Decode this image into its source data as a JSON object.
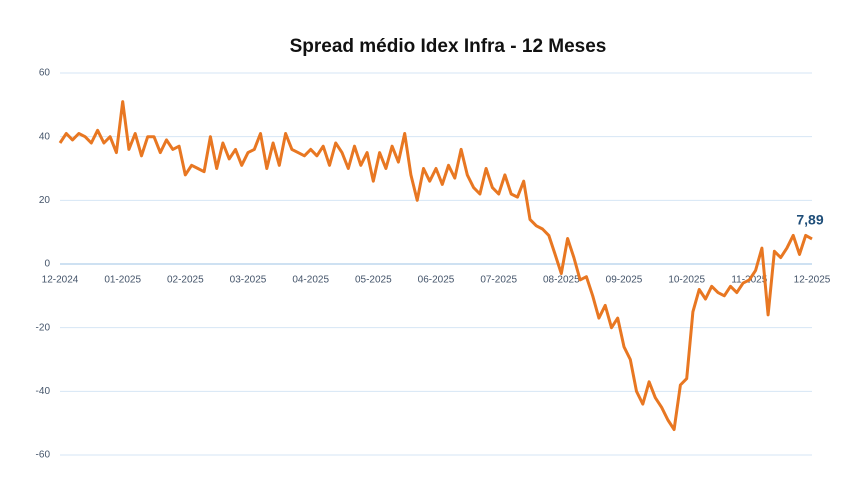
{
  "chart_data": {
    "type": "line",
    "title": "Spread médio Idex Infra - 12 Meses",
    "categories": [
      "12-2024",
      null,
      null,
      null,
      null,
      null,
      null,
      null,
      null,
      null,
      "01-2025",
      null,
      null,
      null,
      null,
      null,
      null,
      null,
      null,
      null,
      "02-2025",
      null,
      null,
      null,
      null,
      null,
      null,
      null,
      null,
      null,
      "03-2025",
      null,
      null,
      null,
      null,
      null,
      null,
      null,
      null,
      null,
      "04-2025",
      null,
      null,
      null,
      null,
      null,
      null,
      null,
      null,
      null,
      "05-2025",
      null,
      null,
      null,
      null,
      null,
      null,
      null,
      null,
      null,
      "06-2025",
      null,
      null,
      null,
      null,
      null,
      null,
      null,
      null,
      null,
      "07-2025",
      null,
      null,
      null,
      null,
      null,
      null,
      null,
      null,
      null,
      "08-2025",
      null,
      null,
      null,
      null,
      null,
      null,
      null,
      null,
      null,
      "09-2025",
      null,
      null,
      null,
      null,
      null,
      null,
      null,
      null,
      null,
      "10-2025",
      null,
      null,
      null,
      null,
      null,
      null,
      null,
      null,
      null,
      "11-2025",
      null,
      null,
      null,
      null,
      null,
      null,
      null,
      null,
      null,
      "12-2025"
    ],
    "series": [
      {
        "name": "Spread médio",
        "color": "#e87722",
        "values": [
          38,
          41,
          39,
          41,
          40,
          38,
          42,
          38,
          40,
          35,
          51,
          36,
          41,
          34,
          40,
          40,
          35,
          39,
          36,
          37,
          28,
          31,
          30,
          29,
          40,
          30,
          38,
          33,
          36,
          31,
          35,
          36,
          41,
          30,
          38,
          31,
          41,
          36,
          35,
          34,
          36,
          34,
          37,
          31,
          38,
          35,
          30,
          37,
          31,
          35,
          26,
          35,
          30,
          37,
          32,
          41,
          28,
          20,
          30,
          26,
          30,
          25,
          31,
          27,
          36,
          28,
          24,
          22,
          30,
          24,
          22,
          28,
          22,
          21,
          26,
          14,
          12,
          11,
          9,
          3,
          -3,
          8,
          2,
          -5,
          -4,
          -10,
          -17,
          -13,
          -20,
          -17,
          -26,
          -30,
          -40,
          -44,
          -37,
          -42,
          -45,
          -49,
          -52,
          -38,
          -36,
          -15,
          -8,
          -11,
          -7,
          -9,
          -10,
          -7,
          -9,
          -6,
          -5,
          -2,
          5,
          -16,
          4,
          2,
          5,
          9,
          3,
          9,
          7.89
        ],
        "value_labels": [
          null,
          null,
          null,
          null,
          null,
          null,
          null,
          null,
          null,
          null,
          null,
          null,
          null,
          null,
          null,
          null,
          null,
          null,
          null,
          null,
          null,
          null,
          null,
          null,
          null,
          null,
          null,
          null,
          null,
          null,
          null,
          null,
          null,
          null,
          null,
          null,
          null,
          null,
          null,
          null,
          null,
          null,
          null,
          null,
          null,
          null,
          null,
          null,
          null,
          null,
          null,
          null,
          null,
          null,
          null,
          null,
          null,
          null,
          null,
          null,
          null,
          null,
          null,
          null,
          null,
          null,
          null,
          null,
          null,
          null,
          null,
          null,
          null,
          null,
          null,
          null,
          null,
          null,
          null,
          null,
          null,
          null,
          null,
          null,
          null,
          null,
          null,
          null,
          null,
          null,
          null,
          null,
          null,
          null,
          null,
          null,
          null,
          null,
          null,
          null,
          null,
          null,
          null,
          null,
          null,
          null,
          null,
          null,
          null,
          null,
          null,
          null,
          null,
          null,
          null,
          null,
          null,
          null,
          null,
          null,
          "7,89"
        ]
      }
    ],
    "ylim": [
      -60,
      60
    ],
    "yticks": [
      60,
      40,
      20,
      0,
      -20,
      -40,
      -60
    ],
    "grid": true
  }
}
